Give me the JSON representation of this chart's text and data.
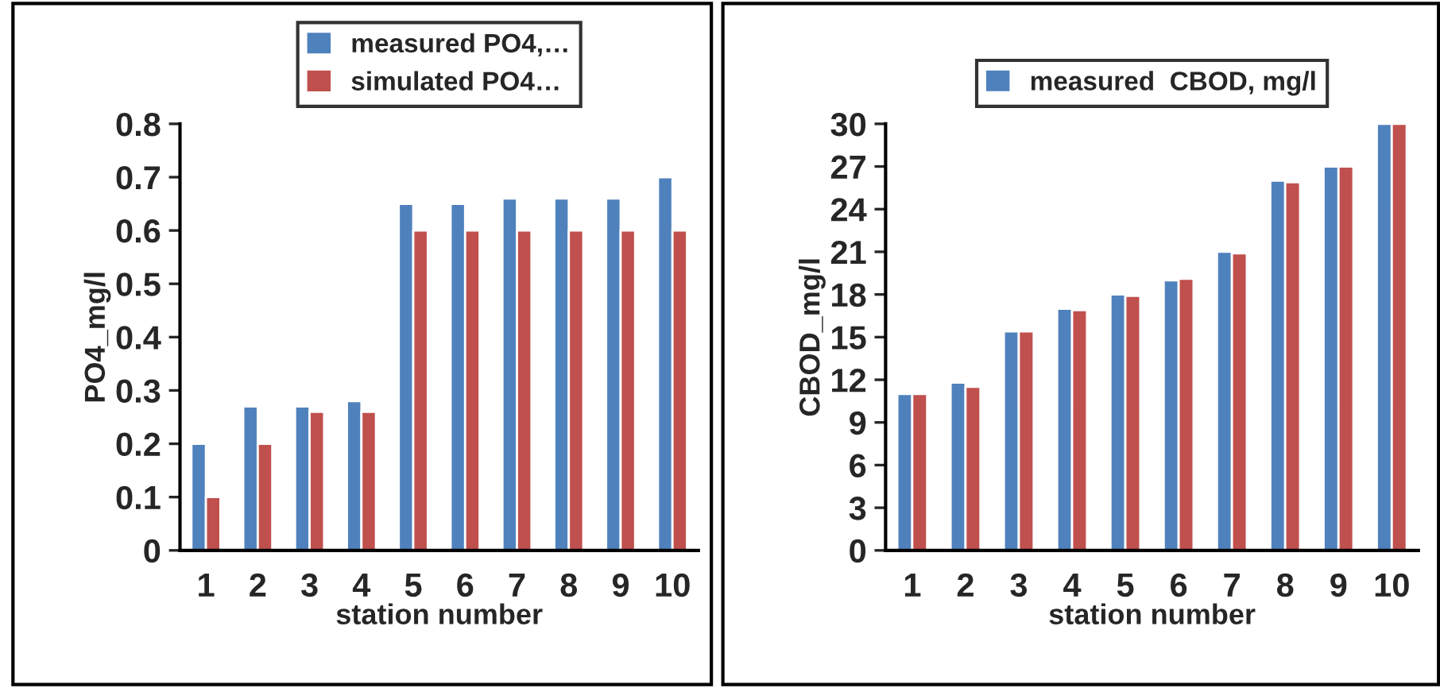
{
  "chart_data": [
    {
      "type": "bar",
      "categories": [
        "1",
        "2",
        "3",
        "4",
        "5",
        "6",
        "7",
        "8",
        "9",
        "10"
      ],
      "xlabel": "station number",
      "ylabel": "PO4_mg/l",
      "ylim": [
        0,
        0.8
      ],
      "yticks": [
        0,
        0.1,
        0.2,
        0.3,
        0.4,
        0.5,
        0.6,
        0.7,
        0.8
      ],
      "legend": "top",
      "grid": false,
      "series": [
        {
          "name": "measured PO4,…",
          "color": "#4f81bd",
          "values": [
            0.2,
            0.27,
            0.27,
            0.28,
            0.65,
            0.65,
            0.66,
            0.66,
            0.66,
            0.7
          ]
        },
        {
          "name": "simulated PO4…",
          "color": "#c0504d",
          "values": [
            0.1,
            0.2,
            0.26,
            0.26,
            0.6,
            0.6,
            0.6,
            0.6,
            0.6,
            0.6
          ]
        }
      ]
    },
    {
      "type": "bar",
      "categories": [
        "1",
        "2",
        "3",
        "4",
        "5",
        "6",
        "7",
        "8",
        "9",
        "10"
      ],
      "xlabel": "station number",
      "ylabel": "CBOD_mg/l",
      "ylim": [
        0,
        30
      ],
      "yticks": [
        0,
        3,
        6,
        9,
        12,
        15,
        18,
        21,
        24,
        27,
        30
      ],
      "legend": "top",
      "grid": false,
      "series": [
        {
          "name": "measured  CBOD, mg/l",
          "color": "#4f81bd",
          "values": [
            11,
            11.8,
            15.4,
            17,
            18,
            19,
            21,
            26,
            27,
            30
          ]
        },
        {
          "color": "#c0504d",
          "values": [
            11,
            11.5,
            15.4,
            16.9,
            17.9,
            19.1,
            20.9,
            25.9,
            27,
            30
          ]
        }
      ]
    }
  ]
}
